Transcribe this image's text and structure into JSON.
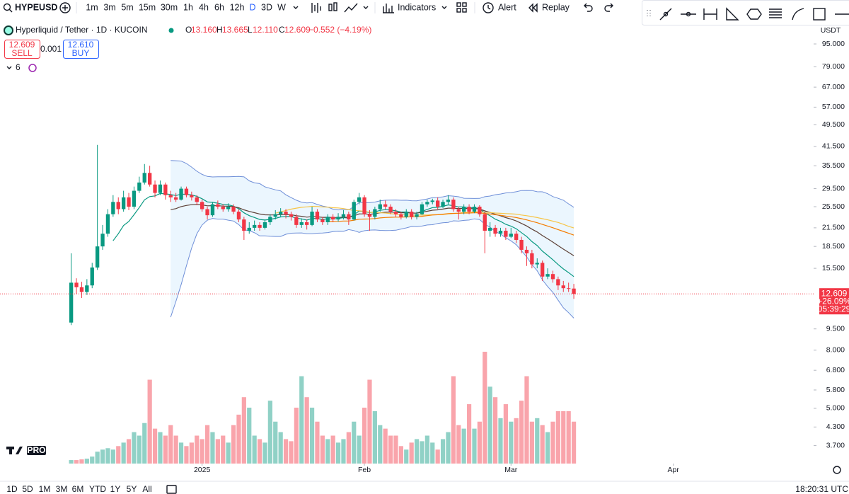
{
  "toolbar": {
    "symbol": "HYPEUSD",
    "intervals": [
      "1m",
      "3m",
      "5m",
      "15m",
      "30m",
      "1h",
      "4h",
      "6h",
      "12h",
      "D",
      "3D",
      "W"
    ],
    "indicators": "Indicators",
    "alert": "Alert",
    "replay": "Replay"
  },
  "legend": {
    "title": "Hyperliquid / Tether · 1D · KUCOIN",
    "o_label": "O",
    "o_value": "13.160",
    "h_label": "H",
    "h_value": "13.665",
    "l_label": "L",
    "l_value": "12.110",
    "c_label": "C",
    "c_value": "12.609",
    "change": "−0.552 (−4.19%)",
    "sell_price": "12.609",
    "sell": "SELL",
    "spread": "0.001",
    "buy_price": "12.610",
    "buy": "BUY",
    "indicator_count": "6"
  },
  "chart_data": {
    "type": "candlestick",
    "up_color": "#089981",
    "down_color": "#f23645",
    "log_scale": true,
    "axis_unit": "USDT",
    "ylim": [
      3.2,
      110.9
    ],
    "yticks": [
      {
        "value": 95,
        "label": "95.000"
      },
      {
        "value": 79,
        "label": "79.000"
      },
      {
        "value": 67,
        "label": "67.000"
      },
      {
        "value": 57,
        "label": "57.000"
      },
      {
        "value": 49.5,
        "label": "49.500"
      },
      {
        "value": 41.5,
        "label": "41.500"
      },
      {
        "value": 35.5,
        "label": "35.500"
      },
      {
        "value": 29.5,
        "label": "29.500"
      },
      {
        "value": 25.5,
        "label": "25.500"
      },
      {
        "value": 21.5,
        "label": "21.500"
      },
      {
        "value": 18.5,
        "label": "18.500"
      },
      {
        "value": 15.5,
        "label": "15.500"
      },
      {
        "value": 9.5,
        "label": "9.500"
      },
      {
        "value": 8,
        "label": "8.000"
      },
      {
        "value": 6.8,
        "label": "6.800"
      },
      {
        "value": 5.8,
        "label": "5.800"
      },
      {
        "value": 5,
        "label": "5.000"
      },
      {
        "value": 4.3,
        "label": "4.300"
      },
      {
        "value": 3.7,
        "label": "3.700"
      }
    ],
    "xlim": [
      -13.6,
      141.8
    ],
    "xticks": [
      {
        "value": 25,
        "label": "2025"
      },
      {
        "value": 56,
        "label": "Feb"
      },
      {
        "value": 84,
        "label": "Mar"
      },
      {
        "value": 115,
        "label": "Apr"
      }
    ],
    "open": [
      10.0,
      13.8,
      13.3,
      12.8,
      13.5,
      15.6,
      18.5,
      20.5,
      24.0,
      26.5,
      25.0,
      27.5,
      25.5,
      29.0,
      31.0,
      33.5,
      30.5,
      28.5,
      30.5,
      28.0,
      27.5,
      27.0,
      29.5,
      28.0,
      27.5,
      26.5,
      25.0,
      23.8,
      26.0,
      25.5,
      25.0,
      25.5,
      24.5,
      23.0,
      21.0,
      21.5,
      22.0,
      21.5,
      22.5,
      23.5,
      24.0,
      24.5,
      24.0,
      23.5,
      22.0,
      22.5,
      22.0,
      24.5,
      23.0,
      22.5,
      23.5,
      23.0,
      23.5,
      24.0,
      23.0,
      26.5,
      27.5,
      24.0,
      23.5,
      25.0,
      26.0,
      25.5,
      24.5,
      24.0,
      23.5,
      24.5,
      23.5,
      24.0,
      26.0,
      26.5,
      26.8,
      25.5,
      26.5,
      27.0,
      25.0,
      24.5,
      25.5,
      24.5,
      25.5,
      24.0,
      21.0,
      21.5,
      20.5,
      21.0,
      20.0,
      20.5,
      19.5,
      18.0,
      17.5,
      16.0,
      16.2,
      14.5,
      14.8,
      14.2,
      13.5,
      13.2,
      13.16
    ],
    "high": [
      17.5,
      14.3,
      13.9,
      14.2,
      16.2,
      42.0,
      22.0,
      25.0,
      28.0,
      27.5,
      29.0,
      28.5,
      30.0,
      32.5,
      36.0,
      35.5,
      31.5,
      31.5,
      31.0,
      29.0,
      28.5,
      30.0,
      30.0,
      28.8,
      28.0,
      27.0,
      25.5,
      26.5,
      26.8,
      26.0,
      26.2,
      26.0,
      25.0,
      23.5,
      22.5,
      22.8,
      22.5,
      23.0,
      24.0,
      24.8,
      25.2,
      25.0,
      24.5,
      24.0,
      23.2,
      23.0,
      25.5,
      25.0,
      23.5,
      24.0,
      24.0,
      24.2,
      24.8,
      24.5,
      27.0,
      28.5,
      28.0,
      24.8,
      25.5,
      27.0,
      26.8,
      26.0,
      25.0,
      24.5,
      25.0,
      25.0,
      24.5,
      26.5,
      27.0,
      27.2,
      27.5,
      27.0,
      28.0,
      27.5,
      25.5,
      26.0,
      26.0,
      26.0,
      25.8,
      24.5,
      22.5,
      22.0,
      21.5,
      21.5,
      21.5,
      21.0,
      20.0,
      18.5,
      18.0,
      16.8,
      16.5,
      15.5,
      15.2,
      14.5,
      14.0,
      13.8,
      13.665
    ],
    "low": [
      9.8,
      12.6,
      12.2,
      12.5,
      13.2,
      15.3,
      18.0,
      20.0,
      23.5,
      24.0,
      24.5,
      24.8,
      25.0,
      28.5,
      30.5,
      30.0,
      27.5,
      28.0,
      27.0,
      26.5,
      26.5,
      26.8,
      27.5,
      26.8,
      25.8,
      24.5,
      23.0,
      23.5,
      25.0,
      24.5,
      24.5,
      24.0,
      22.5,
      19.5,
      20.5,
      21.0,
      21.0,
      21.2,
      22.0,
      23.0,
      23.5,
      23.2,
      22.8,
      21.5,
      21.5,
      21.2,
      21.8,
      22.5,
      22.0,
      22.0,
      22.5,
      22.6,
      23.0,
      22.0,
      22.8,
      26.0,
      23.5,
      21.0,
      23.0,
      24.5,
      25.0,
      24.0,
      23.5,
      23.0,
      23.2,
      23.0,
      23.0,
      23.8,
      25.5,
      26.0,
      25.0,
      25.2,
      26.0,
      24.5,
      23.0,
      24.0,
      24.0,
      24.2,
      23.5,
      17.5,
      20.0,
      20.0,
      20.0,
      19.5,
      19.8,
      19.0,
      17.5,
      15.8,
      15.5,
      15.5,
      14.0,
      14.2,
      13.8,
      13.0,
      12.8,
      12.8,
      12.11
    ],
    "close": [
      13.8,
      13.3,
      12.8,
      13.5,
      15.6,
      18.5,
      20.5,
      24.0,
      26.5,
      25.0,
      27.5,
      25.5,
      29.0,
      31.0,
      33.5,
      30.5,
      28.5,
      30.5,
      28.0,
      27.5,
      27.0,
      29.5,
      28.0,
      27.5,
      26.5,
      25.0,
      23.8,
      26.0,
      25.5,
      25.0,
      25.5,
      24.5,
      23.0,
      21.0,
      21.5,
      22.0,
      21.5,
      22.5,
      23.5,
      24.0,
      24.5,
      24.0,
      23.5,
      22.0,
      22.5,
      22.0,
      24.5,
      23.0,
      22.5,
      23.5,
      23.0,
      23.5,
      24.0,
      23.0,
      26.5,
      27.5,
      24.0,
      23.5,
      25.0,
      26.0,
      25.5,
      24.5,
      24.0,
      23.5,
      24.5,
      23.5,
      24.0,
      26.0,
      26.5,
      26.8,
      25.5,
      26.5,
      27.0,
      25.0,
      24.5,
      25.5,
      24.5,
      25.5,
      24.0,
      21.0,
      21.5,
      20.5,
      21.0,
      20.0,
      20.5,
      19.5,
      18.0,
      17.5,
      16.0,
      16.2,
      14.5,
      14.8,
      14.2,
      13.5,
      13.2,
      13.16,
      12.609
    ],
    "volume": [
      5,
      5,
      6,
      7,
      10,
      17,
      20,
      22,
      20,
      25,
      30,
      35,
      45,
      40,
      58,
      120,
      50,
      45,
      40,
      55,
      40,
      30,
      25,
      30,
      40,
      35,
      55,
      45,
      35,
      40,
      30,
      55,
      70,
      95,
      80,
      40,
      35,
      30,
      90,
      60,
      45,
      35,
      32,
      80,
      125,
      95,
      80,
      60,
      40,
      35,
      40,
      30,
      35,
      45,
      60,
      40,
      80,
      120,
      75,
      55,
      50,
      40,
      40,
      25,
      20,
      30,
      35,
      32,
      40,
      30,
      20,
      35,
      45,
      125,
      55,
      50,
      85,
      50,
      60,
      160,
      110,
      95,
      65,
      85,
      60,
      65,
      90,
      125,
      60,
      65,
      55,
      45,
      60,
      75,
      75,
      75,
      60
    ],
    "volume_lim": [
      0,
      160
    ],
    "bollinger": {
      "length": 20,
      "mult": 2,
      "line_color": "#6f8fd8",
      "fill_color": "rgba(33,150,243,0.09)"
    },
    "moving_averages": [
      {
        "kind": "ema",
        "length": 9,
        "color": "#089981"
      },
      {
        "kind": "ema",
        "length": 20,
        "color": "#5d4037"
      },
      {
        "kind": "sma",
        "length": 40,
        "color": "#f7c548"
      },
      {
        "kind": "ema",
        "length": 50,
        "color": "#f57c00"
      }
    ],
    "last_price": {
      "price": "12.609",
      "change": "+26.09%",
      "countdown": "05:39:29",
      "color": "#f23645"
    },
    "grid": false
  },
  "footer": {
    "ranges": [
      "1D",
      "5D",
      "1M",
      "3M",
      "6M",
      "YTD",
      "1Y",
      "5Y",
      "All"
    ],
    "clock": "18:20:31 UTC",
    "badge": "PRO"
  }
}
